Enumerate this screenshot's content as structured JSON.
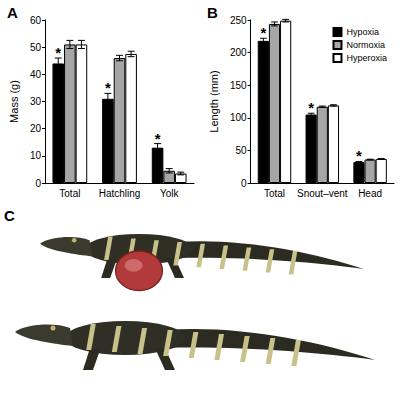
{
  "chart_data": [
    {
      "type": "bar",
      "title": "A",
      "y_label": "Mass (g)",
      "categories": [
        "Total",
        "Hatchling",
        "Yolk"
      ],
      "series": [
        {
          "name": "Hypoxia",
          "color": "#000000",
          "values": [
            44,
            31,
            13
          ],
          "errors": [
            2,
            2,
            1.5
          ]
        },
        {
          "name": "Normoxia",
          "color": "#a6a6a6",
          "values": [
            51,
            46,
            4.5
          ],
          "errors": [
            1.5,
            1,
            0.8
          ]
        },
        {
          "name": "Hyperoxia",
          "color": "#ffffff",
          "values": [
            51,
            47.5,
            3.5
          ],
          "errors": [
            1.5,
            1,
            0.5
          ]
        }
      ],
      "ylim": [
        0,
        60
      ],
      "yticks": [
        0,
        10,
        20,
        30,
        40,
        50,
        60
      ],
      "grid": false,
      "annotations": [
        {
          "text": "*",
          "category": "Total",
          "series": "Hypoxia"
        },
        {
          "text": "*",
          "category": "Hatchling",
          "series": "Hypoxia"
        },
        {
          "text": "*",
          "category": "Yolk",
          "series": "Hypoxia"
        }
      ]
    },
    {
      "type": "bar",
      "title": "B",
      "y_label": "Length (mm)",
      "categories": [
        "Total",
        "Snout–vent",
        "Head"
      ],
      "series": [
        {
          "name": "Hypoxia",
          "color": "#000000",
          "values": [
            218,
            105,
            32
          ],
          "errors": [
            4,
            2,
            1
          ]
        },
        {
          "name": "Normoxia",
          "color": "#a6a6a6",
          "values": [
            244,
            117,
            36
          ],
          "errors": [
            3,
            1,
            0.5
          ]
        },
        {
          "name": "Hyperoxia",
          "color": "#ffffff",
          "values": [
            249,
            119,
            37
          ],
          "errors": [
            2,
            1,
            0.5
          ]
        }
      ],
      "ylim": [
        0,
        250
      ],
      "yticks": [
        0,
        50,
        100,
        150,
        200,
        250
      ],
      "grid": false,
      "legend": "upper right",
      "annotations": [
        {
          "text": "*",
          "category": "Total",
          "series": "Hypoxia"
        },
        {
          "text": "*",
          "category": "Snout–vent",
          "series": "Hypoxia"
        },
        {
          "text": "*",
          "category": "Head",
          "series": "Hypoxia"
        }
      ]
    }
  ],
  "photo": {
    "label": "C"
  }
}
